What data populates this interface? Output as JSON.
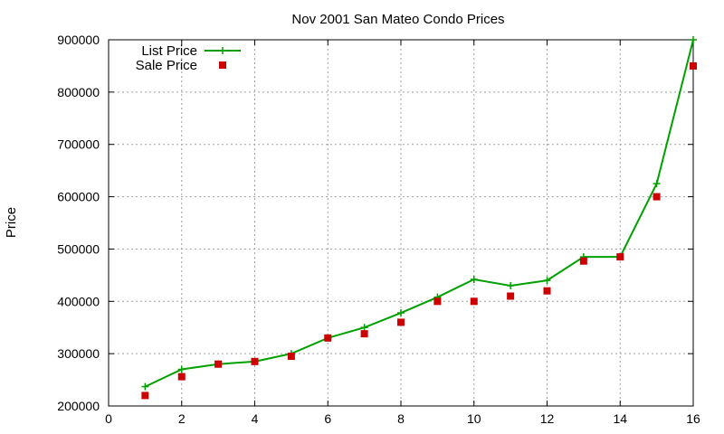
{
  "chart_data": {
    "type": "line",
    "title": "Nov 2001 San Mateo Condo Prices",
    "xlabel": "",
    "ylabel": "Price",
    "xlim": [
      0,
      16
    ],
    "ylim": [
      200000,
      900000
    ],
    "x_ticks": [
      "0",
      "2",
      "4",
      "6",
      "8",
      "10",
      "12",
      "14",
      "16"
    ],
    "y_ticks": [
      "200000",
      "300000",
      "400000",
      "500000",
      "600000",
      "700000",
      "800000",
      "900000"
    ],
    "grid": true,
    "legend_position": "top-left",
    "series": [
      {
        "name": "List Price",
        "style": "line+cross",
        "color": "#00a000",
        "x": [
          1,
          2,
          3,
          4,
          5,
          6,
          7,
          8,
          9,
          10,
          11,
          12,
          13,
          14,
          15,
          16
        ],
        "y": [
          237000,
          270000,
          280000,
          285000,
          300000,
          330000,
          350000,
          378000,
          408000,
          442000,
          430000,
          440000,
          485000,
          485000,
          625000,
          900000
        ]
      },
      {
        "name": "Sale Price",
        "style": "square",
        "color": "#cc0000",
        "x": [
          1,
          2,
          3,
          4,
          5,
          6,
          7,
          8,
          9,
          10,
          11,
          12,
          13,
          14,
          15,
          16
        ],
        "y": [
          220000,
          256000,
          280000,
          285000,
          295000,
          330000,
          338000,
          360000,
          400000,
          400000,
          410000,
          420000,
          477000,
          485000,
          600000,
          850000
        ]
      }
    ]
  }
}
